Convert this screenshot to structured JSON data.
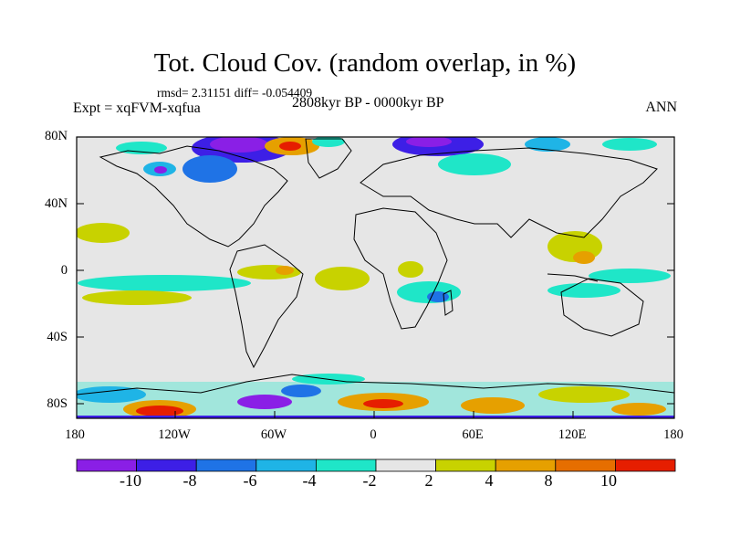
{
  "title": "Tot. Cloud Cov. (random overlap, in %)",
  "stats": "rmsd= 2.31151 diff= -0.054409",
  "experiment": "Expt = xqFVM-xqfua",
  "period": "2808kyr BP - 0000kyr BP",
  "season": "ANN",
  "y_labels": [
    "80N",
    "40N",
    "0",
    "40S",
    "80S"
  ],
  "x_labels": [
    "180",
    "120W",
    "60W",
    "0",
    "60E",
    "120E",
    "180"
  ],
  "colorbar": {
    "labels": [
      "-10",
      "-8",
      "-6",
      "-4",
      "-2",
      "2",
      "4",
      "8",
      "10"
    ],
    "colors": [
      "#8a1fe6",
      "#3d1fe6",
      "#1f73e6",
      "#1fb4e6",
      "#1fe6c8",
      "#e6e6e6",
      "#c8d200",
      "#e6a000",
      "#e66e00",
      "#e61e00"
    ]
  },
  "background_color": "#e6e6e6"
}
